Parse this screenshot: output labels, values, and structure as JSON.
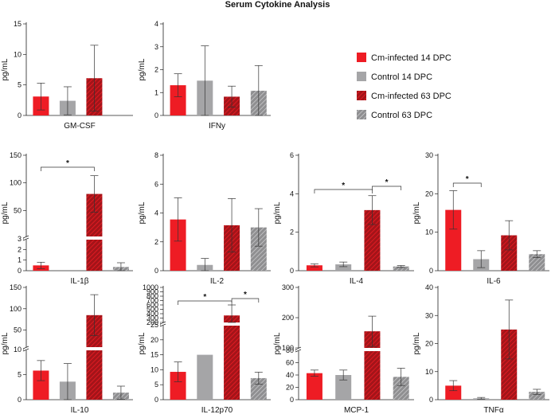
{
  "figure_title": "Serum Cytokine Analysis",
  "colors": {
    "cm_infected": "#ee1c24",
    "control": "#a5a5a7",
    "cm_infected_hatch_bg": "#a31419",
    "control_hatch_bg": "#8f8f91"
  },
  "legend": [
    {
      "label": "Cm-infected 14 DPC",
      "style": "solid-red"
    },
    {
      "label": "Control 14 DPC",
      "style": "solid-gray"
    },
    {
      "label": "Cm-infected 63 DPC",
      "style": "hatch-red"
    },
    {
      "label": "Control 63 DPC",
      "style": "hatch-gray"
    }
  ],
  "chart_data": [
    {
      "type": "bar",
      "name": "GM-CSF",
      "xlabel": "GM-CSF",
      "ylabel": "pg/mL",
      "ylim": [
        0,
        15
      ],
      "ticks": [
        0,
        5,
        10,
        15
      ],
      "tick_labels": [
        "0",
        "5",
        "10",
        "15"
      ],
      "series": [
        "Cm-infected 14 DPC",
        "Control 14 DPC",
        "Cm-infected 63 DPC",
        "Control 63 DPC"
      ],
      "values": [
        3.1,
        2.4,
        6.1,
        null
      ],
      "errors": [
        2.2,
        2.3,
        5.4,
        null
      ],
      "significance": []
    },
    {
      "type": "bar",
      "name": "IFNy",
      "xlabel": "IFNy",
      "ylabel": "pg/mL",
      "ylim": [
        0,
        4
      ],
      "ticks": [
        0,
        1,
        2,
        3,
        4
      ],
      "tick_labels": [
        "0",
        "1",
        "2",
        "3",
        "4"
      ],
      "series": [
        "Cm-infected 14 DPC",
        "Control 14 DPC",
        "Cm-infected 63 DPC",
        "Control 63 DPC"
      ],
      "values": [
        1.32,
        1.52,
        0.82,
        1.08
      ],
      "errors": [
        0.5,
        1.52,
        0.46,
        1.1
      ],
      "significance": []
    },
    {
      "type": "bar",
      "name": "IL-1β",
      "xlabel": "IL-1β",
      "ylabel": "pg/mL",
      "ylim": [
        0,
        150
      ],
      "broken_axis": {
        "lower": [
          0,
          3
        ],
        "upper": [
          3,
          150
        ]
      },
      "ticks": [
        0,
        1,
        2,
        3,
        50,
        100,
        150
      ],
      "tick_labels": [
        "0",
        "1",
        "2",
        "3",
        "50",
        "100",
        "150"
      ],
      "series": [
        "Cm-infected 14 DPC",
        "Control 14 DPC",
        "Cm-infected 63 DPC",
        "Control 63 DPC"
      ],
      "values": [
        0.5,
        0,
        80,
        0.35
      ],
      "errors": [
        0.3,
        0,
        33,
        0.4
      ],
      "significance": [
        {
          "from": 0,
          "to": 2,
          "label": "*"
        }
      ]
    },
    {
      "type": "bar",
      "name": "IL-2",
      "xlabel": "IL-2",
      "ylabel": "pg/mL",
      "ylim": [
        0,
        8
      ],
      "ticks": [
        0,
        2,
        4,
        6,
        8
      ],
      "tick_labels": [
        "0",
        "2",
        "4",
        "6",
        "8"
      ],
      "series": [
        "Cm-infected 14 DPC",
        "Control 14 DPC",
        "Cm-infected 63 DPC",
        "Control 63 DPC"
      ],
      "values": [
        3.55,
        0.4,
        3.15,
        3.0
      ],
      "errors": [
        1.5,
        0.45,
        1.85,
        1.3
      ],
      "significance": []
    },
    {
      "type": "bar",
      "name": "IL-4",
      "xlabel": "IL-4",
      "ylabel": "pg/mL",
      "ylim": [
        0,
        6
      ],
      "ticks": [
        0,
        2,
        4,
        6
      ],
      "tick_labels": [
        "0",
        "2",
        "4",
        "6"
      ],
      "series": [
        "Cm-infected 14 DPC",
        "Control 14 DPC",
        "Cm-infected 63 DPC",
        "Control 63 DPC"
      ],
      "values": [
        0.28,
        0.33,
        3.15,
        0.22
      ],
      "errors": [
        0.08,
        0.12,
        0.75,
        0.05
      ],
      "significance": [
        {
          "from": 0,
          "to": 2,
          "label": "*"
        },
        {
          "from": 2,
          "to": 3,
          "label": "*"
        }
      ]
    },
    {
      "type": "bar",
      "name": "IL-6",
      "xlabel": "IL-6",
      "ylabel": "pg/mL",
      "ylim": [
        0,
        30
      ],
      "ticks": [
        0,
        10,
        20,
        30
      ],
      "tick_labels": [
        "0",
        "10",
        "20",
        "30"
      ],
      "series": [
        "Cm-infected 14 DPC",
        "Control 14 DPC",
        "Cm-infected 63 DPC",
        "Control 63 DPC"
      ],
      "values": [
        15.8,
        3.0,
        9.2,
        4.3
      ],
      "errors": [
        5.0,
        2.2,
        3.8,
        0.9
      ],
      "significance": [
        {
          "from": 0,
          "to": 1,
          "label": "*"
        }
      ]
    },
    {
      "type": "bar",
      "name": "IL-10",
      "xlabel": "IL-10",
      "ylabel": "pg/mL",
      "ylim": [
        0,
        150
      ],
      "broken_axis": {
        "lower": [
          0,
          10
        ],
        "upper": [
          10,
          150
        ]
      },
      "ticks": [
        0,
        5,
        10,
        50,
        100,
        150
      ],
      "tick_labels": [
        "0",
        "5",
        "10",
        "50",
        "100",
        "150"
      ],
      "series": [
        "Cm-infected 14 DPC",
        "Control 14 DPC",
        "Cm-infected 63 DPC",
        "Control 63 DPC"
      ],
      "values": [
        5.8,
        3.6,
        85,
        1.4
      ],
      "errors": [
        2.0,
        3.6,
        48,
        1.3
      ],
      "significance": []
    },
    {
      "type": "bar",
      "name": "IL-12p70",
      "xlabel": "IL-12p70",
      "ylabel": "pg/mL",
      "ylim": [
        0,
        1000
      ],
      "broken_axis": {
        "lower": [
          0,
          25
        ],
        "upper": [
          25,
          1000
        ]
      },
      "ticks": [
        0,
        5,
        10,
        15,
        20,
        25,
        200,
        300,
        400,
        500,
        600,
        700,
        800,
        900,
        1000
      ],
      "tick_labels": [
        "0",
        "5",
        "10",
        "15",
        "20",
        "25",
        "200",
        "300",
        "400",
        "500",
        "600",
        "700",
        "800",
        "900",
        "1000"
      ],
      "series": [
        "Cm-infected 14 DPC",
        "Control 14 DPC",
        "Cm-infected 63 DPC",
        "Control 63 DPC"
      ],
      "values": [
        9.3,
        15,
        360,
        7.2
      ],
      "errors": [
        3.3,
        0,
        240,
        2.0
      ],
      "significance": [
        {
          "from": 0,
          "to": 2,
          "label": "*"
        },
        {
          "from": 2,
          "to": 3,
          "label": "*"
        }
      ]
    },
    {
      "type": "bar",
      "name": "MCP-1",
      "xlabel": "MCP-1",
      "ylabel": "pg/mL",
      "ylim": [
        0,
        300
      ],
      "broken_axis": {
        "lower": [
          0,
          80
        ],
        "upper": [
          80,
          300
        ]
      },
      "ticks": [
        0,
        20,
        40,
        60,
        80,
        100,
        200,
        300
      ],
      "tick_labels": [
        "0",
        "20",
        "40",
        "60",
        "80",
        "100",
        "200",
        "300"
      ],
      "series": [
        "Cm-infected 14 DPC",
        "Control 14 DPC",
        "Cm-infected 63 DPC",
        "Control 63 DPC"
      ],
      "values": [
        43,
        40,
        155,
        37
      ],
      "errors": [
        5,
        8,
        50,
        14
      ],
      "significance": []
    },
    {
      "type": "bar",
      "name": "TNFα",
      "xlabel": "TNFα",
      "ylabel": "pg/mL",
      "ylim": [
        0,
        40
      ],
      "ticks": [
        0,
        10,
        20,
        30,
        40
      ],
      "tick_labels": [
        "0",
        "10",
        "20",
        "30",
        "40"
      ],
      "series": [
        "Cm-infected 14 DPC",
        "Control 14 DPC",
        "Cm-infected 63 DPC",
        "Control 63 DPC"
      ],
      "values": [
        5.0,
        0.5,
        25,
        2.8
      ],
      "errors": [
        1.8,
        0.3,
        10.5,
        0.9
      ],
      "significance": []
    }
  ]
}
